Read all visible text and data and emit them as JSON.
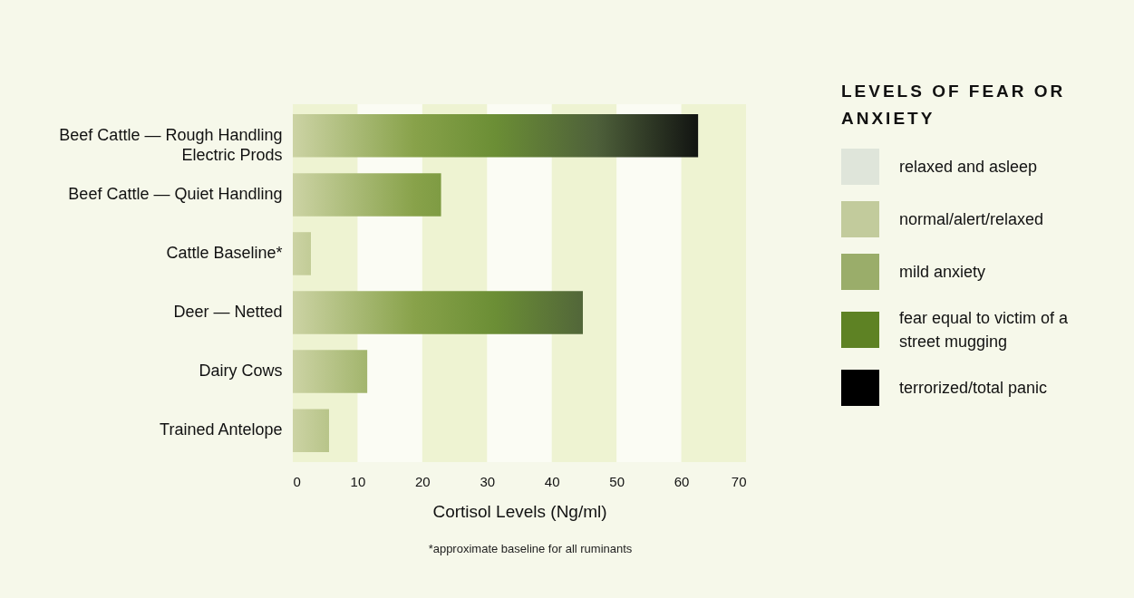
{
  "chart_data": {
    "type": "bar",
    "orientation": "horizontal",
    "categories": [
      "Beef Cattle — Rough Handling\nElectric Prods",
      "Beef Cattle — Quiet Handling",
      "Cattle Baseline*",
      "Deer — Netted",
      "Dairy Cows",
      "Trained Antelope"
    ],
    "series": [
      {
        "color": "#6b8e35",
        "values": [
          62.6,
          22.9,
          2.8,
          44.8,
          11.5,
          5.6
        ]
      }
    ],
    "xlabel": "Cortisol Levels (Ng/ml)",
    "xlim": [
      0,
      70
    ],
    "xticks": [
      0,
      10,
      20,
      30,
      40,
      50,
      60,
      70
    ],
    "legend_title": "LEVELS OF FEAR OR ANXIETY",
    "bands": [
      {
        "axis": "x",
        "from": 0,
        "to": 10,
        "color": "#eef3d2"
      },
      {
        "axis": "x",
        "from": 20,
        "to": 30,
        "color": "#eef3d2"
      },
      {
        "axis": "x",
        "from": 40,
        "to": 50,
        "color": "#eef3d2"
      },
      {
        "axis": "x",
        "from": 60,
        "to": 70,
        "color": "#eef3d2"
      }
    ],
    "annotations": [
      "relaxed and asleep",
      "normal/alert/relaxed",
      "mild anxiety",
      "fear equal to victim of a street mugging",
      "terrorized/total panic",
      "*approximate baseline for all ruminants"
    ]
  }
}
